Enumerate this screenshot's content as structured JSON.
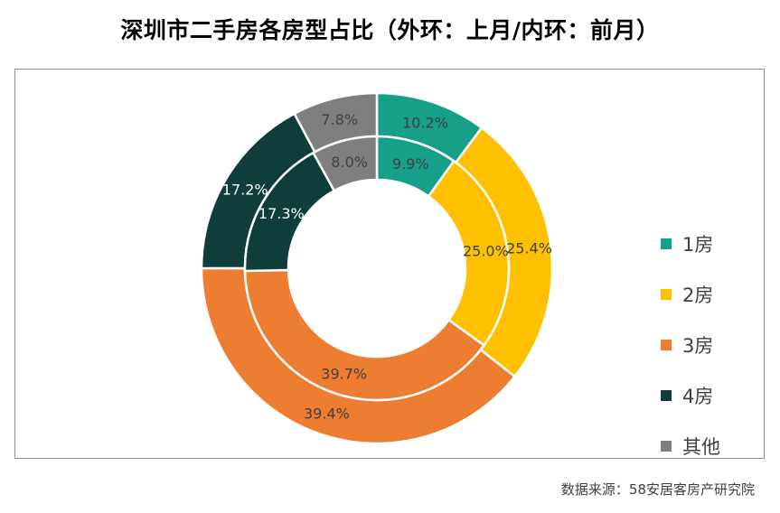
{
  "title": "深圳市二手房各房型占比（外环：上月/内环：前月）",
  "source": "数据来源：58安居客房产研究院",
  "chart_data": {
    "type": "pie",
    "subtype": "nested-donut",
    "title": "深圳市二手房各房型占比（外环：上月/内环：前月）",
    "legend_position": "right",
    "categories": [
      "1房",
      "2房",
      "3房",
      "4房",
      "其他"
    ],
    "colors": [
      "#16A08A",
      "#FFC000",
      "#ED7D31",
      "#0E3D3A",
      "#7F7F7F"
    ],
    "series": [
      {
        "ring": "outer",
        "values": [
          10.2,
          25.4,
          39.4,
          17.2,
          7.8
        ],
        "labels": [
          "10.2%",
          "25.4%",
          "39.4%",
          "17.2%",
          "7.8%"
        ]
      },
      {
        "ring": "inner",
        "values": [
          9.9,
          25.0,
          39.7,
          17.3,
          8.0
        ],
        "labels": [
          "9.9%",
          "25.0%",
          "39.7%",
          "17.3%",
          "8.0%"
        ]
      }
    ]
  }
}
